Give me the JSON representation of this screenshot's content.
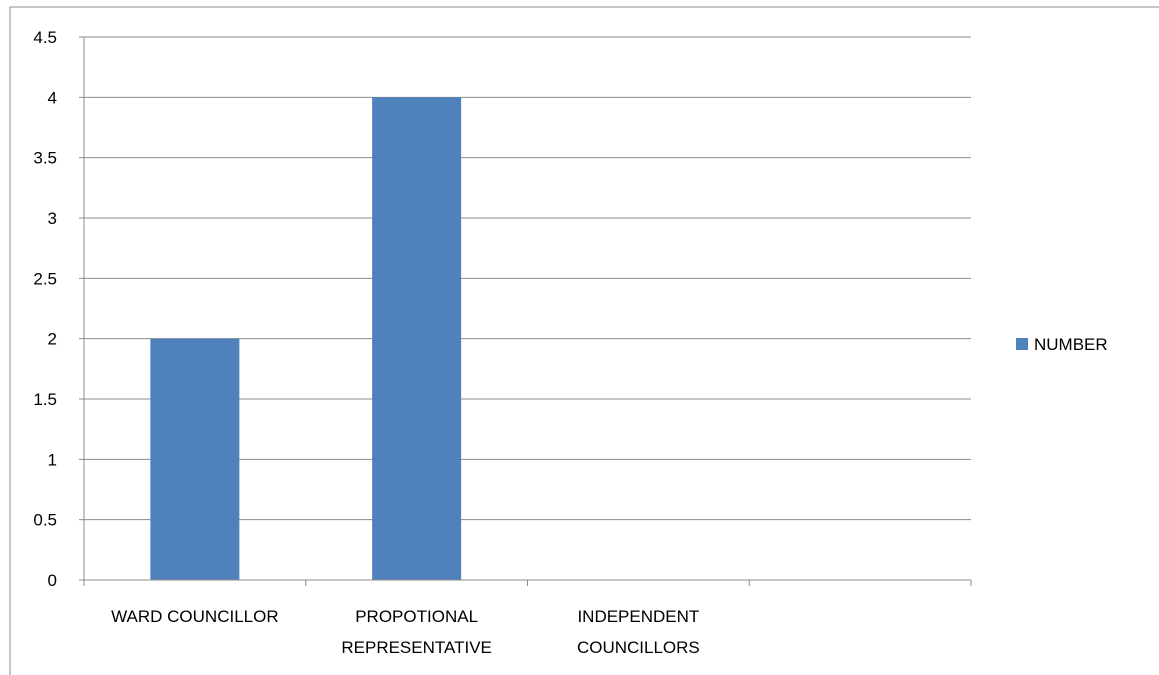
{
  "chart_data": {
    "type": "bar",
    "categories": [
      [
        "WARD COUNCILLOR"
      ],
      [
        "PROPOTIONAL",
        "REPRESENTATIVE"
      ],
      [
        "INDEPENDENT",
        "COUNCILLORS"
      ],
      [
        ""
      ]
    ],
    "series": [
      {
        "name": "NUMBER",
        "values": [
          2,
          4,
          0,
          0
        ],
        "color": "#4F81BD"
      }
    ],
    "yticks": [
      "0",
      "0.5",
      "1",
      "1.5",
      "2",
      "2.5",
      "3",
      "3.5",
      "4",
      "4.5"
    ],
    "ylim": [
      0,
      4.5
    ],
    "grid": true,
    "legend_position": "right",
    "title": "",
    "xlabel": "",
    "ylabel": ""
  }
}
